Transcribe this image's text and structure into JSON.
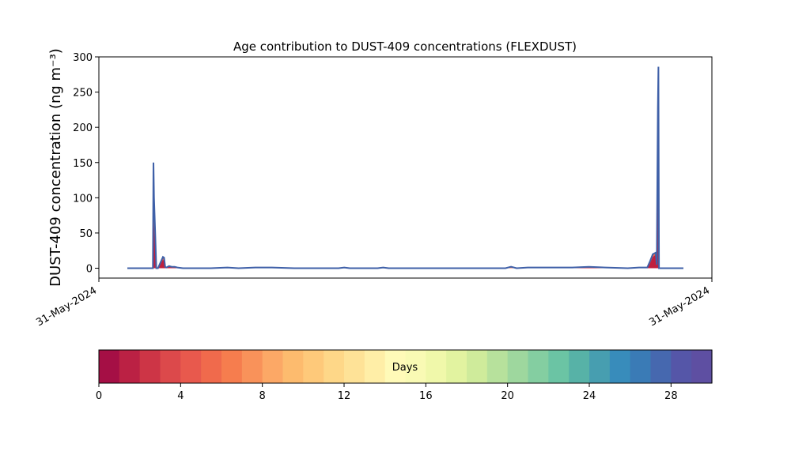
{
  "chart_data": {
    "type": "area",
    "title": "Age contribution to DUST-409 concentrations (FLEXDUST)",
    "ylabel": "DUST-409 concentration (ng m⁻³)",
    "xlabel": "",
    "ylim": [
      -14,
      300
    ],
    "yticks": [
      0,
      50,
      100,
      150,
      200,
      250,
      300
    ],
    "xticks": [
      "31-May-2024",
      "31-May-2024"
    ],
    "x": [
      0.0,
      0.046,
      0.047,
      0.048,
      0.05,
      0.052,
      0.055,
      0.064,
      0.066,
      0.068,
      0.07,
      0.075,
      0.08,
      0.085,
      0.09,
      0.1,
      0.12,
      0.15,
      0.18,
      0.2,
      0.23,
      0.26,
      0.3,
      0.35,
      0.38,
      0.39,
      0.4,
      0.45,
      0.46,
      0.47,
      0.5,
      0.55,
      0.6,
      0.65,
      0.68,
      0.69,
      0.7,
      0.72,
      0.75,
      0.8,
      0.83,
      0.86,
      0.9,
      0.92,
      0.935,
      0.94,
      0.945,
      0.95,
      0.952,
      0.953,
      0.954,
      0.955,
      0.956,
      1.0
    ],
    "totals": [
      0,
      0,
      150,
      100,
      50,
      0,
      0,
      16,
      15,
      2,
      1,
      3,
      2,
      2,
      1,
      0,
      0,
      0,
      1,
      0,
      1,
      1,
      0,
      0,
      0,
      1,
      0,
      0,
      1,
      0,
      0,
      0,
      0,
      0,
      0,
      2,
      0,
      1,
      1,
      1,
      2,
      1,
      0,
      1,
      1,
      10,
      20,
      22,
      5,
      120,
      228,
      286,
      0,
      0
    ],
    "red_part": [
      0,
      0,
      100,
      60,
      30,
      0,
      0,
      12,
      10,
      1,
      1,
      2,
      1,
      1,
      1,
      0,
      0,
      0,
      0,
      0,
      1,
      0,
      0,
      0,
      0,
      0,
      0,
      0,
      0,
      0,
      0,
      0,
      0,
      0,
      0,
      0,
      0,
      1,
      1,
      0,
      1,
      0,
      0,
      0,
      0,
      7,
      16,
      19,
      3,
      90,
      190,
      190,
      0,
      0
    ],
    "colorbar": {
      "label": "Days",
      "min": 0,
      "max": 30,
      "ticks": [
        0,
        4,
        8,
        12,
        16,
        20,
        24,
        28
      ],
      "colors": [
        "#a50f45",
        "#bb2144",
        "#cd3546",
        "#dc494b",
        "#e8594d",
        "#f06a4c",
        "#f67d4e",
        "#f9925a",
        "#fca866",
        "#fdbb6e",
        "#fec97a",
        "#fed788",
        "#fee297",
        "#ffeea7",
        "#fffab8",
        "#f9fab4",
        "#f0f8aa",
        "#e2f3a0",
        "#cfeb9b",
        "#b7e19c",
        "#9ed79e",
        "#84cea1",
        "#6bc4a4",
        "#57b2a7",
        "#479eb0",
        "#388cbb",
        "#3a7bb6",
        "#4668af",
        "#5556a8",
        "#5e4fa2"
      ]
    }
  }
}
